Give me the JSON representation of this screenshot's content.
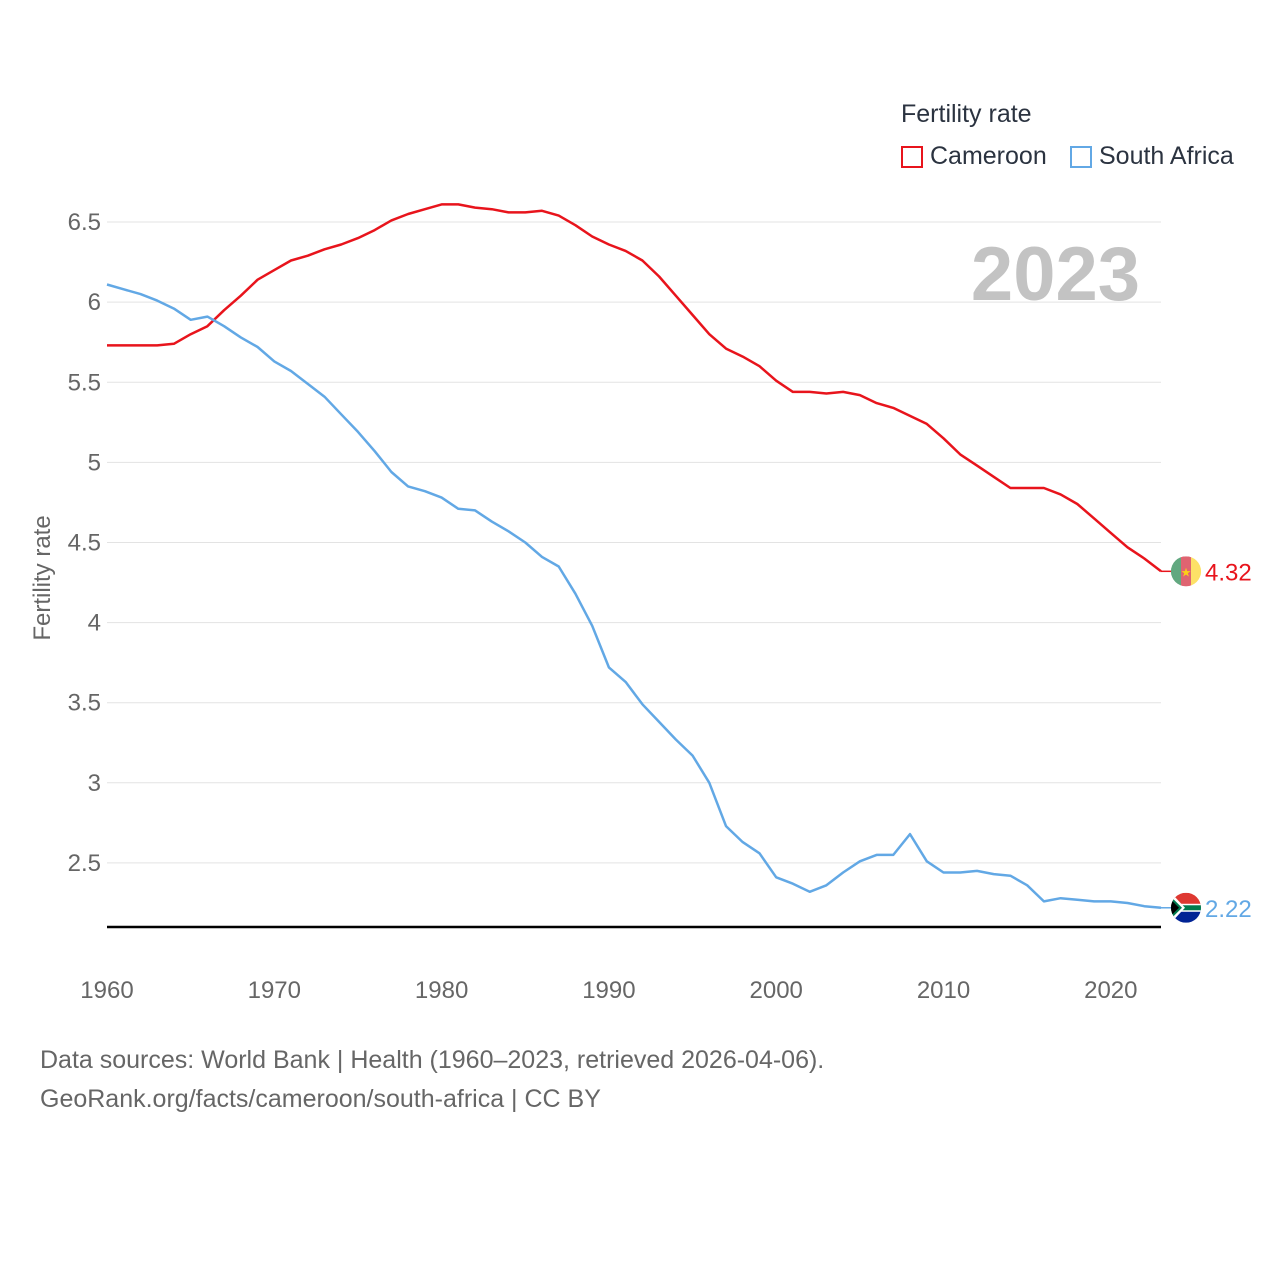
{
  "legend": {
    "title": "Fertility rate",
    "items": [
      {
        "label": "Cameroon",
        "color": "#e8141c"
      },
      {
        "label": "South Africa",
        "color": "#62a8e5"
      }
    ]
  },
  "year_display": "2023",
  "footer": {
    "line1": "Data sources: World Bank | Health (1960–2023, retrieved 2026-04-06).",
    "line2": "GeoRank.org/facts/cameroon/south-africa | CC BY"
  },
  "chart_data": {
    "type": "line",
    "title": "Fertility rate",
    "xlabel": "",
    "ylabel": "Fertility rate",
    "xlim": [
      1960,
      2023
    ],
    "ylim": [
      2.1,
      6.7
    ],
    "x_ticks": [
      1960,
      1970,
      1980,
      1990,
      2000,
      2010,
      2020
    ],
    "y_ticks": [
      2.5,
      3,
      3.5,
      4,
      4.5,
      5,
      5.5,
      6,
      6.5
    ],
    "y_tick_labels": [
      "2.5",
      "3",
      "3.5",
      "4",
      "4.5",
      "5",
      "5.5",
      "6",
      "6.5"
    ],
    "x": [
      1960,
      1961,
      1962,
      1963,
      1964,
      1965,
      1966,
      1967,
      1968,
      1969,
      1970,
      1971,
      1972,
      1973,
      1974,
      1975,
      1976,
      1977,
      1978,
      1979,
      1980,
      1981,
      1982,
      1983,
      1984,
      1985,
      1986,
      1987,
      1988,
      1989,
      1990,
      1991,
      1992,
      1993,
      1994,
      1995,
      1996,
      1997,
      1998,
      1999,
      2000,
      2001,
      2002,
      2003,
      2004,
      2005,
      2006,
      2007,
      2008,
      2009,
      2010,
      2011,
      2012,
      2013,
      2014,
      2015,
      2016,
      2017,
      2018,
      2019,
      2020,
      2021,
      2022,
      2023
    ],
    "series": [
      {
        "name": "Cameroon",
        "color": "#e8141c",
        "end_label": "4.32",
        "values": [
          5.73,
          5.73,
          5.73,
          5.73,
          5.74,
          5.8,
          5.85,
          5.95,
          6.04,
          6.14,
          6.2,
          6.26,
          6.29,
          6.33,
          6.36,
          6.4,
          6.45,
          6.51,
          6.55,
          6.58,
          6.61,
          6.61,
          6.59,
          6.58,
          6.56,
          6.56,
          6.57,
          6.54,
          6.48,
          6.41,
          6.36,
          6.32,
          6.26,
          6.16,
          6.04,
          5.92,
          5.8,
          5.71,
          5.66,
          5.6,
          5.51,
          5.44,
          5.44,
          5.43,
          5.44,
          5.42,
          5.37,
          5.34,
          5.29,
          5.24,
          5.15,
          5.05,
          4.98,
          4.91,
          4.84,
          4.84,
          4.84,
          4.8,
          4.74,
          4.65,
          4.56,
          4.47,
          4.4,
          4.32
        ]
      },
      {
        "name": "South Africa",
        "color": "#62a8e5",
        "end_label": "2.22",
        "values": [
          6.11,
          6.08,
          6.05,
          6.01,
          5.96,
          5.89,
          5.91,
          5.85,
          5.78,
          5.72,
          5.63,
          5.57,
          5.49,
          5.41,
          5.3,
          5.19,
          5.07,
          4.94,
          4.85,
          4.82,
          4.78,
          4.71,
          4.7,
          4.63,
          4.57,
          4.5,
          4.41,
          4.35,
          4.18,
          3.98,
          3.72,
          3.63,
          3.49,
          3.38,
          3.27,
          3.17,
          3.0,
          2.73,
          2.63,
          2.56,
          2.41,
          2.37,
          2.32,
          2.36,
          2.44,
          2.51,
          2.55,
          2.55,
          2.68,
          2.51,
          2.44,
          2.44,
          2.45,
          2.43,
          2.42,
          2.36,
          2.26,
          2.28,
          2.27,
          2.26,
          2.26,
          2.25,
          2.23,
          2.22
        ]
      }
    ]
  }
}
